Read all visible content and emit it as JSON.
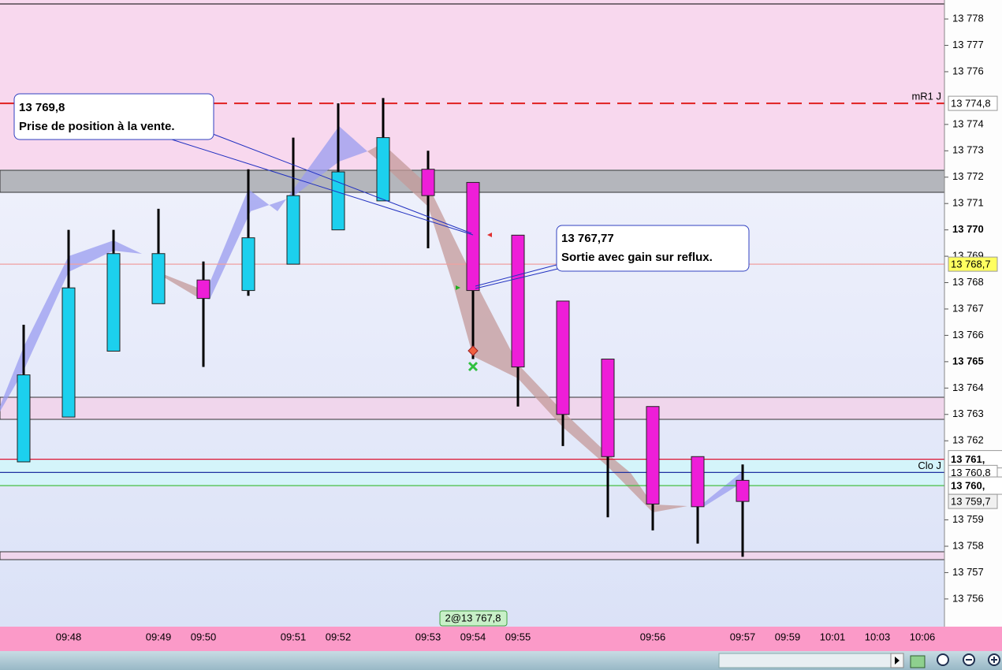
{
  "chart_data": {
    "type": "candlestick",
    "categories": [
      null,
      "09:48",
      null,
      "09:49",
      "09:50",
      null,
      "09:51",
      "09:52",
      null,
      "09:53",
      "09:54",
      "09:55",
      null,
      null,
      "09:56",
      null,
      "09:57",
      "09:59",
      "10:01",
      "10:03",
      "10:06"
    ],
    "open": [
      13761.2,
      13762.9,
      13765.4,
      13767.2,
      13768.1,
      13767.7,
      13768.7,
      13770.0,
      13771.1,
      13772.3,
      13771.8,
      13769.8,
      13767.3,
      13765.1,
      13763.3,
      13761.4,
      13760.5,
      null,
      null,
      null,
      null
    ],
    "high": [
      13766.4,
      13770.0,
      13770.0,
      13770.8,
      13768.8,
      13772.3,
      13773.5,
      13774.8,
      13775.0,
      13773.0,
      13771.8,
      13769.8,
      13767.3,
      13765.1,
      13763.3,
      13761.4,
      13761.1,
      null,
      null,
      null,
      null
    ],
    "low": [
      13761.2,
      13762.9,
      13765.4,
      13767.2,
      13764.8,
      13767.5,
      13768.7,
      13770.0,
      13771.1,
      13769.3,
      13765.1,
      13763.3,
      13761.8,
      13759.1,
      13758.6,
      13758.1,
      13757.6,
      null,
      null,
      null,
      null
    ],
    "close": [
      13764.5,
      13767.8,
      13769.1,
      13769.1,
      13767.4,
      13769.7,
      13771.3,
      13772.2,
      13773.5,
      13771.3,
      13767.7,
      13764.8,
      13763.0,
      13761.4,
      13759.6,
      13759.5,
      13759.7,
      null,
      null,
      null,
      null
    ],
    "up_color": "#1cd0ee",
    "down_color": "#ee1ed8",
    "ylim": [
      13754.95,
      13778.72
    ],
    "yticks": [
      {
        "value": 13756,
        "label": "13 756"
      },
      {
        "value": 13757,
        "label": "13 757"
      },
      {
        "value": 13758,
        "label": "13 758"
      },
      {
        "value": 13759,
        "label": "13 759"
      },
      {
        "value": 13762,
        "label": "13 762"
      },
      {
        "value": 13763,
        "label": "13 763"
      },
      {
        "value": 13764,
        "label": "13 764"
      },
      {
        "value": 13765,
        "label": "13 765"
      },
      {
        "value": 13766,
        "label": "13 766"
      },
      {
        "value": 13767,
        "label": "13 767"
      },
      {
        "value": 13768,
        "label": "13 768"
      },
      {
        "value": 13769,
        "label": "13 769"
      },
      {
        "value": 13770,
        "label": "13 770"
      },
      {
        "value": 13771,
        "label": "13 771"
      },
      {
        "value": 13772,
        "label": "13 772"
      },
      {
        "value": 13773,
        "label": "13 773"
      },
      {
        "value": 13774,
        "label": "13 774"
      },
      {
        "value": 13776,
        "label": "13 776"
      },
      {
        "value": 13777,
        "label": "13 777"
      },
      {
        "value": 13778,
        "label": "13 778"
      }
    ],
    "bold_yticks": [
      13765,
      13770
    ],
    "levels": [
      {
        "name": "mR1 J",
        "value": 13774.8,
        "label": "13 774,8",
        "color": "#e02020",
        "dashed": true,
        "tag_text": "#d03030",
        "tag_bg": "#ffffff"
      },
      {
        "value": 13768.7,
        "label": "13 768,7",
        "color": "#f0a0a0",
        "tag_text": "#000000",
        "tag_bg": "#ffff60"
      },
      {
        "value": 13761.3,
        "label": "13 761,",
        "color": "#e01030",
        "tag_text": "#2040e0",
        "tag_bg": "#ffffff",
        "big": true
      },
      {
        "name": "Clo J",
        "value": 13760.8,
        "label": "13 760,8",
        "color": "#2030a0",
        "tag_text": "#2030c0",
        "tag_bg": "#ffffff"
      },
      {
        "value": 13760.3,
        "label": "13 760,",
        "color": "#30c030",
        "tag_text": "#e01030",
        "tag_bg": "#ffffff",
        "big": true
      },
      {
        "value": 13759.7,
        "label": "13 759,7",
        "tag_text": "#000000",
        "tag_bg": "#f0f0f0"
      }
    ],
    "annotations": [
      {
        "price": "13 769,8",
        "text": "Prise de position à la vente."
      },
      {
        "price": "13 767,77",
        "text": "Sortie avec gain sur reflux."
      }
    ],
    "trade_label": "2@13 767,8"
  }
}
